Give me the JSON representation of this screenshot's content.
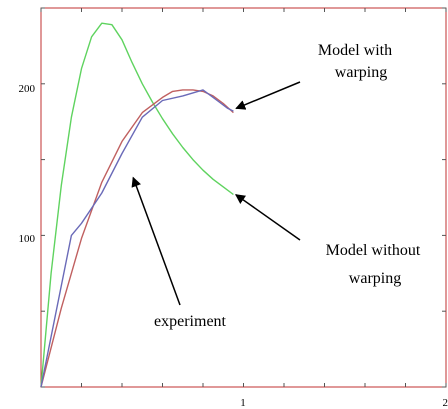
{
  "chart_data": {
    "type": "line",
    "title": "",
    "xlabel": "",
    "ylabel": "",
    "xlim": [
      0,
      2
    ],
    "ylim": [
      0,
      250
    ],
    "x_ticks": [
      "1",
      "2"
    ],
    "y_ticks": [
      "100",
      "200"
    ],
    "grid": false,
    "colors": {
      "axes": "#c03030",
      "green": "#5fd35f",
      "red": "#c06060",
      "blue": "#6a6ab8"
    },
    "series": [
      {
        "color_key": "green",
        "x": [
          0.0,
          0.05,
          0.1,
          0.15,
          0.2,
          0.25,
          0.3,
          0.35,
          0.4,
          0.45,
          0.5,
          0.55,
          0.6,
          0.65,
          0.7,
          0.75,
          0.8,
          0.85,
          0.9,
          0.95
        ],
        "y": [
          0,
          75,
          133,
          178,
          210,
          231,
          240,
          239,
          229,
          214,
          200,
          188,
          177,
          167,
          158,
          150,
          143,
          137,
          132,
          127
        ]
      },
      {
        "color_key": "red",
        "x": [
          0.0,
          0.1,
          0.2,
          0.3,
          0.4,
          0.5,
          0.6,
          0.65,
          0.7,
          0.75,
          0.8,
          0.85,
          0.9,
          0.95
        ],
        "y": [
          0,
          52,
          98,
          135,
          162,
          181,
          191,
          195,
          196,
          196,
          195,
          192,
          187,
          181
        ]
      },
      {
        "color_key": "blue",
        "x": [
          0.0,
          0.15,
          0.2,
          0.3,
          0.4,
          0.5,
          0.6,
          0.7,
          0.75,
          0.8,
          0.84,
          0.88,
          0.92,
          0.95
        ],
        "y": [
          0,
          100,
          108,
          128,
          154,
          178,
          189,
          192,
          194,
          196,
          192,
          188,
          184,
          182
        ]
      }
    ],
    "annotations": [
      {
        "lines": [
          "Model with",
          "warping"
        ],
        "arrow_to": [
          0.95,
          183
        ]
      },
      {
        "lines": [
          "Model without",
          "warping"
        ],
        "arrow_to": [
          0.95,
          128
        ]
      },
      {
        "lines": [
          "experiment"
        ],
        "arrow_to": [
          0.45,
          140
        ]
      }
    ]
  }
}
